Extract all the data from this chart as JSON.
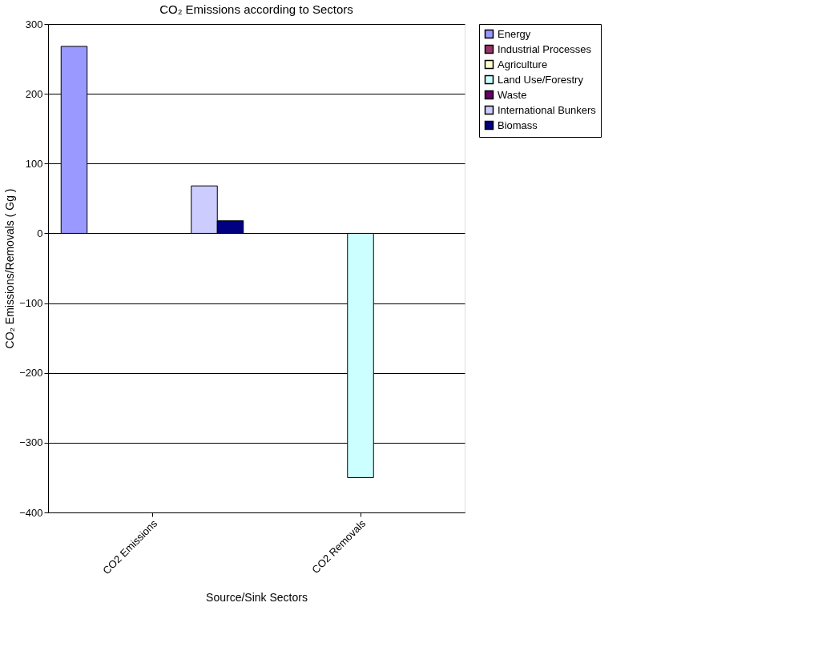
{
  "chart_data": {
    "type": "bar",
    "title": "CO₂ Emissions according to Sectors",
    "xlabel": "Source/Sink Sectors",
    "ylabel": "CO₂ Emissions/Removals ( Gg )",
    "categories": [
      "CO2 Emissions",
      "CO2 Removals"
    ],
    "series": [
      {
        "name": "Energy",
        "color": "#9999ff",
        "values": [
          268,
          null
        ]
      },
      {
        "name": "Industrial Processes",
        "color": "#993366",
        "values": [
          null,
          null
        ]
      },
      {
        "name": "Agriculture",
        "color": "#ffffcc",
        "values": [
          null,
          null
        ]
      },
      {
        "name": "Land Use/Forestry",
        "color": "#ccffff",
        "values": [
          null,
          -350
        ]
      },
      {
        "name": "Waste",
        "color": "#660066",
        "values": [
          null,
          null
        ]
      },
      {
        "name": "International Bunkers",
        "color": "#ccccff",
        "values": [
          68,
          null
        ]
      },
      {
        "name": "Biomass",
        "color": "#000080",
        "values": [
          18,
          null
        ]
      }
    ],
    "ylim": [
      -400,
      300
    ],
    "yticks": [
      -400,
      -300,
      -200,
      -100,
      0,
      100,
      200,
      300
    ],
    "grid": "y",
    "legend": "right"
  }
}
